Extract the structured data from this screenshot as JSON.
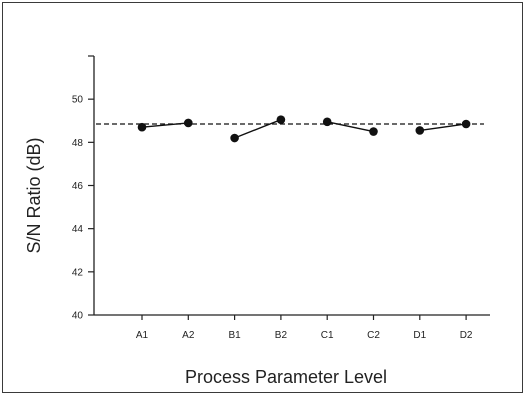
{
  "chart_data": {
    "type": "line",
    "xlabel": "Process Parameter Level",
    "ylabel": "S/N Ratio (dB)",
    "categories": [
      "A1",
      "A2",
      "B1",
      "B2",
      "C1",
      "C2",
      "D1",
      "D2"
    ],
    "ylim": [
      40,
      52
    ],
    "yticks": [
      40,
      42,
      44,
      46,
      48,
      50
    ],
    "groups": [
      {
        "name": "A",
        "points": [
          {
            "x": "A1",
            "y": 48.7
          },
          {
            "x": "A2",
            "y": 48.9
          }
        ]
      },
      {
        "name": "B",
        "points": [
          {
            "x": "B1",
            "y": 48.2
          },
          {
            "x": "B2",
            "y": 49.05
          }
        ]
      },
      {
        "name": "C",
        "points": [
          {
            "x": "C1",
            "y": 48.95
          },
          {
            "x": "C2",
            "y": 48.5
          }
        ]
      },
      {
        "name": "D",
        "points": [
          {
            "x": "D1",
            "y": 48.55
          },
          {
            "x": "D2",
            "y": 48.85
          }
        ]
      }
    ],
    "reference_line": {
      "y": 48.85,
      "style": "dashed"
    },
    "grid": false,
    "colors": {
      "series": "#111111",
      "axis": "#222222",
      "reference": "#111111"
    }
  }
}
